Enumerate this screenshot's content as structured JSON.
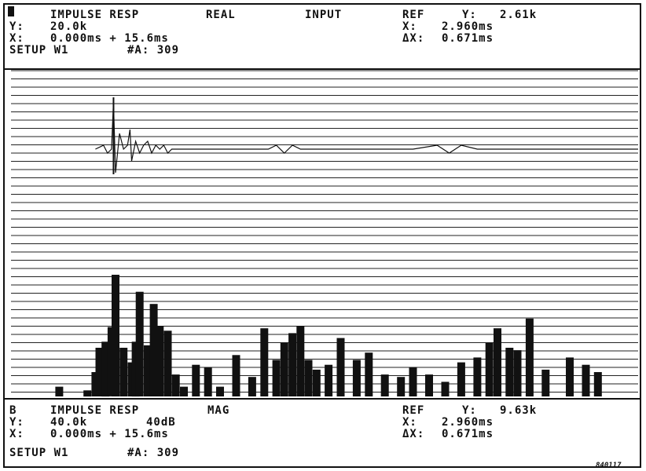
{
  "trace_a": {
    "marker_label": "",
    "title": "IMPULSE RESP",
    "mode": "REAL",
    "source": "INPUT",
    "y_label": "Y:",
    "y_value": "20.0k",
    "x_label": "X:",
    "x_value": "0.000ms + 15.6ms",
    "setup": "SETUP W1",
    "avg": "#A: 309",
    "ref_label": "REF",
    "ref_y_label": "Y:",
    "ref_y_value": "2.61k",
    "ref_x_label": "X:",
    "ref_x_value": "2.960ms",
    "ref_dx_label": "ΔX:",
    "ref_dx_value": "0.671ms"
  },
  "trace_b": {
    "marker_label": "B",
    "title": "IMPULSE RESP",
    "mode": "MAG",
    "y_label": "Y:",
    "y_value": "40.0k",
    "db_value": "40dB",
    "x_label": "X:",
    "x_value": "0.000ms + 15.6ms",
    "setup": "SETUP W1",
    "avg": "#A: 309",
    "ref_label": "REF",
    "ref_y_label": "Y:",
    "ref_y_value": "9.63k",
    "ref_x_label": "X:",
    "ref_x_value": "2.960ms",
    "ref_dx_label": "ΔX:",
    "ref_dx_value": "0.671ms"
  },
  "figure_code": "840117",
  "colors": {
    "ink": "#111111",
    "paper": "#ffffff"
  },
  "chart_data": [
    {
      "type": "line",
      "title": "IMPULSE RESP REAL INPUT",
      "xlabel": "",
      "ylabel": "",
      "xlim_ms": [
        0,
        15.6
      ],
      "grid": true,
      "x_ms": [
        2.1,
        2.3,
        2.4,
        2.5,
        2.55,
        2.6,
        2.7,
        2.8,
        2.9,
        2.96,
        3.0,
        3.1,
        3.2,
        3.3,
        3.4,
        3.5,
        3.6,
        3.7,
        3.8,
        3.9,
        4.0,
        4.5,
        5.0,
        5.5,
        6.0,
        6.4,
        6.6,
        6.8,
        7.0,
        7.2,
        7.6,
        8.0,
        9.0,
        10.0,
        10.6,
        10.9,
        11.2,
        11.6,
        12.0,
        12.6,
        13.0,
        13.5,
        14.0,
        15.0,
        15.6
      ],
      "y": [
        0,
        1,
        -1,
        0,
        12,
        -6,
        4,
        0,
        1,
        5,
        -3,
        2,
        -1,
        1,
        2,
        -1,
        1,
        0,
        1,
        -1,
        0,
        0,
        0,
        0,
        0,
        0,
        1,
        -1,
        1,
        0,
        0,
        0,
        0,
        0,
        1,
        -1,
        1,
        0,
        0,
        0,
        0,
        0,
        0,
        0,
        0
      ]
    },
    {
      "type": "bar",
      "title": "IMPULSE RESP MAG",
      "xlabel": "",
      "ylabel": "",
      "xlim_ms": [
        0,
        15.6
      ],
      "ylim": [
        0,
        100
      ],
      "grid": true,
      "x_ms": [
        1.2,
        1.9,
        2.1,
        2.2,
        2.35,
        2.5,
        2.6,
        2.8,
        3.0,
        3.1,
        3.2,
        3.4,
        3.55,
        3.7,
        3.9,
        4.1,
        4.3,
        4.6,
        4.9,
        5.2,
        5.6,
        6.0,
        6.3,
        6.6,
        6.8,
        7.0,
        7.2,
        7.4,
        7.6,
        7.9,
        8.2,
        8.6,
        8.9,
        9.3,
        9.7,
        10.0,
        10.4,
        10.8,
        11.2,
        11.6,
        11.9,
        12.1,
        12.4,
        12.6,
        12.9,
        13.3,
        13.9,
        14.3,
        14.6
      ],
      "values": [
        8,
        5,
        20,
        40,
        45,
        57,
        100,
        40,
        28,
        45,
        86,
        42,
        76,
        58,
        54,
        18,
        8,
        26,
        24,
        8,
        34,
        16,
        56,
        30,
        44,
        52,
        58,
        30,
        22,
        26,
        48,
        30,
        36,
        18,
        16,
        24,
        18,
        12,
        28,
        32,
        44,
        56,
        40,
        38,
        64,
        22,
        32,
        26,
        20
      ]
    }
  ]
}
